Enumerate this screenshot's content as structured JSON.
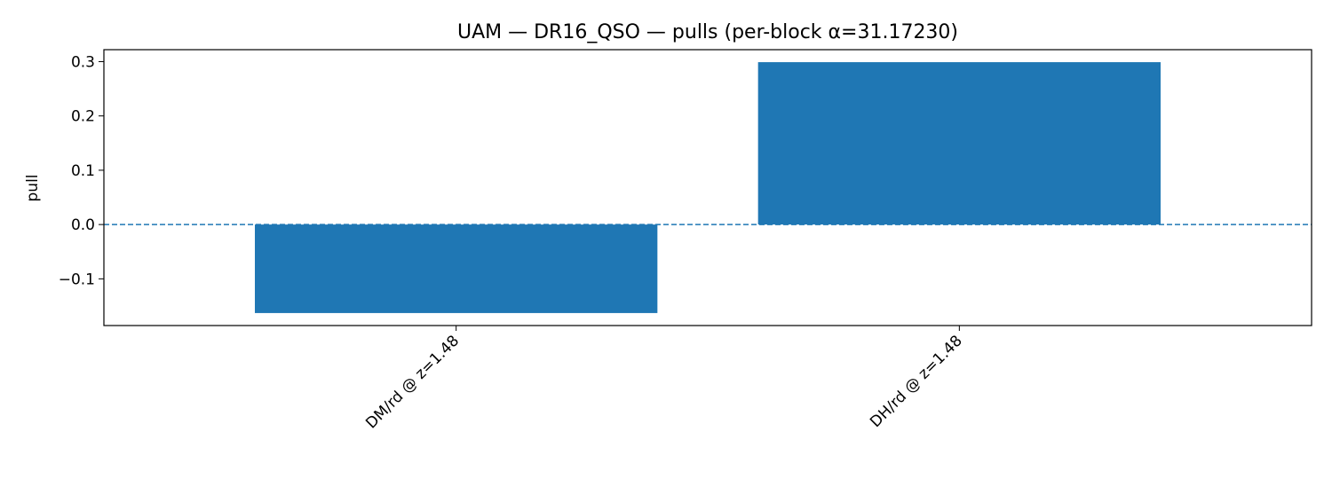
{
  "chart_data": {
    "type": "bar",
    "title": "UAM — DR16_QSO — pulls (per-block α=31.17230)",
    "xlabel": "",
    "ylabel": "pull",
    "categories": [
      "DM/rd @ z=1.48",
      "DH/rd @ z=1.48"
    ],
    "values": [
      -0.163,
      0.299
    ],
    "ylim": [
      -0.186,
      0.322
    ],
    "yticks": [
      -0.1,
      0.0,
      0.1,
      0.2,
      0.3
    ],
    "ytick_labels": [
      "−0.1",
      "0.0",
      "0.1",
      "0.2",
      "0.3"
    ],
    "reference_line": {
      "y": 0.0,
      "style": "dashed"
    },
    "bar_color": "#1f77b4",
    "grid": false,
    "legend": "none"
  }
}
